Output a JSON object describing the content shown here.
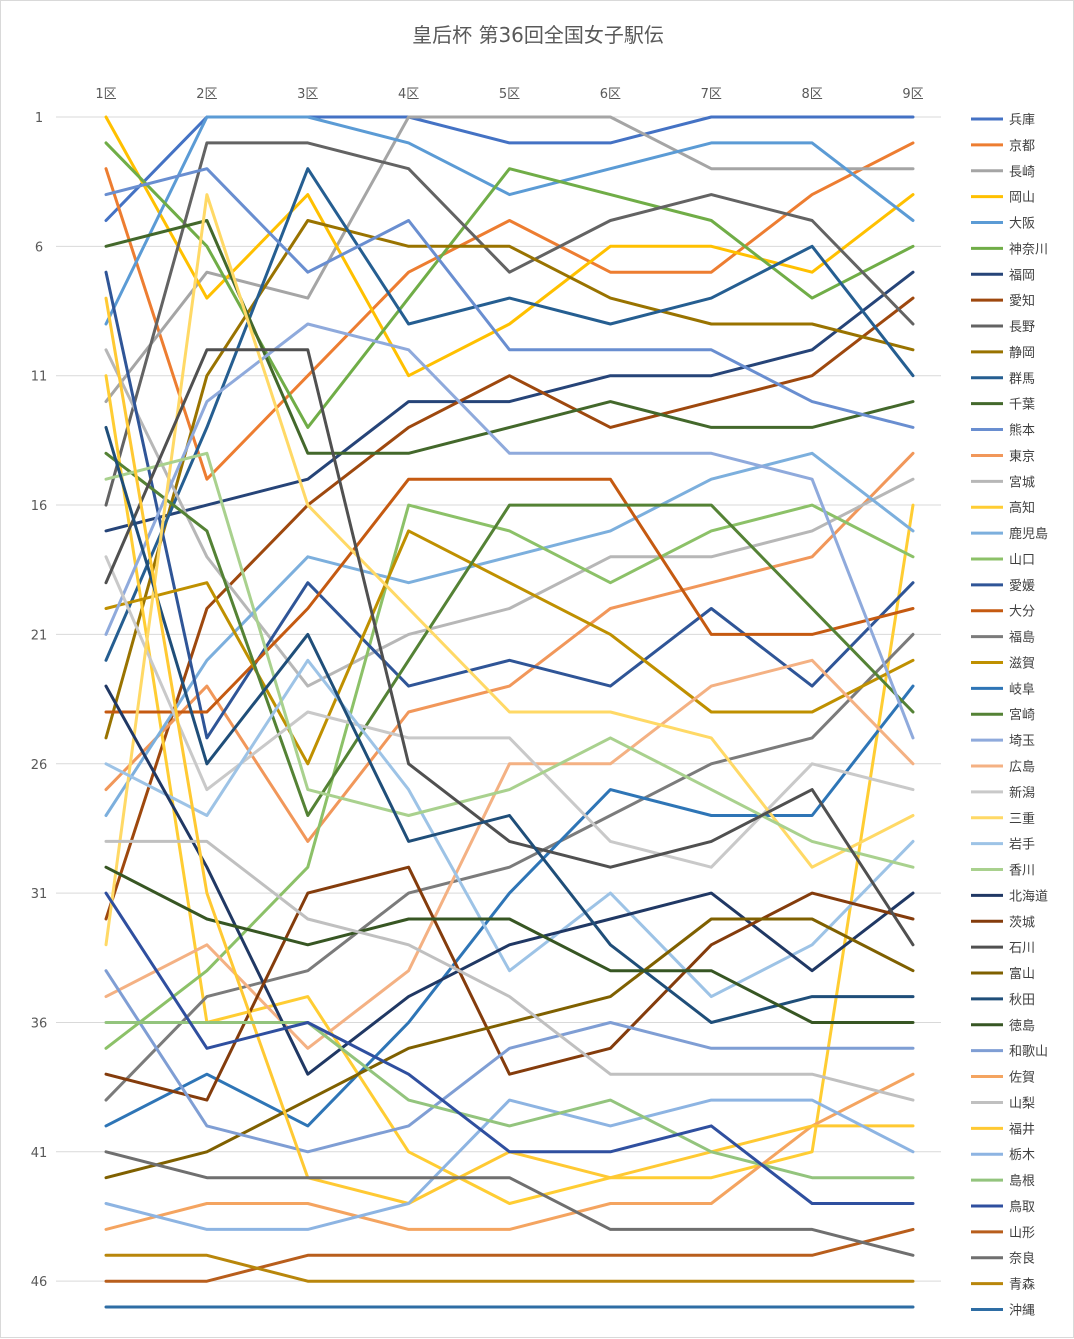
{
  "chart_data": {
    "type": "line",
    "title": "皇后杯 第36回全国女子駅伝",
    "xlabel": "",
    "ylabel": "",
    "x": [
      "1区",
      "2区",
      "3区",
      "4区",
      "5区",
      "6区",
      "7区",
      "8区",
      "9区"
    ],
    "y_reversed": true,
    "ylim": [
      1,
      47
    ],
    "y_ticks": [
      1,
      6,
      11,
      16,
      21,
      26,
      31,
      36,
      41,
      46
    ],
    "grid": "horizontal",
    "legend_position": "right",
    "series": [
      {
        "name": "兵庫",
        "color": "#4472C4",
        "values": [
          5,
          1,
          1,
          1,
          2,
          2,
          1,
          1,
          1
        ]
      },
      {
        "name": "京都",
        "color": "#ED7D31",
        "values": [
          3,
          15,
          11,
          7,
          5,
          7,
          7,
          4,
          2
        ]
      },
      {
        "name": "長崎",
        "color": "#A5A5A5",
        "values": [
          12,
          7,
          8,
          1,
          1,
          1,
          3,
          3,
          3
        ]
      },
      {
        "name": "岡山",
        "color": "#FFC000",
        "values": [
          1,
          8,
          4,
          11,
          9,
          6,
          6,
          7,
          4
        ]
      },
      {
        "name": "大阪",
        "color": "#5B9BD5",
        "values": [
          9,
          1,
          1,
          2,
          4,
          3,
          2,
          2,
          5
        ]
      },
      {
        "name": "神奈川",
        "color": "#70AD47",
        "values": [
          2,
          6,
          13,
          8,
          3,
          4,
          5,
          8,
          6
        ]
      },
      {
        "name": "福岡",
        "color": "#264478",
        "values": [
          17,
          16,
          15,
          12,
          12,
          11,
          11,
          10,
          7
        ]
      },
      {
        "name": "愛知",
        "color": "#9E480E",
        "values": [
          32,
          20,
          16,
          13,
          11,
          13,
          12,
          11,
          8
        ]
      },
      {
        "name": "長野",
        "color": "#636363",
        "values": [
          16,
          2,
          2,
          3,
          7,
          5,
          4,
          5,
          9
        ]
      },
      {
        "name": "静岡",
        "color": "#997300",
        "values": [
          25,
          11,
          5,
          6,
          6,
          8,
          9,
          9,
          10
        ]
      },
      {
        "name": "群馬",
        "color": "#255E91",
        "values": [
          22,
          13,
          3,
          9,
          8,
          9,
          8,
          6,
          11
        ]
      },
      {
        "name": "千葉",
        "color": "#43682B",
        "values": [
          6,
          5,
          14,
          14,
          13,
          12,
          13,
          13,
          12
        ]
      },
      {
        "name": "熊本",
        "color": "#698ED0",
        "values": [
          4,
          3,
          7,
          5,
          10,
          10,
          10,
          12,
          13
        ]
      },
      {
        "name": "東京",
        "color": "#F1975A",
        "values": [
          27,
          23,
          29,
          24,
          23,
          20,
          19,
          18,
          14
        ]
      },
      {
        "name": "宮城",
        "color": "#B7B7B7",
        "values": [
          10,
          18,
          23,
          21,
          20,
          18,
          18,
          17,
          15
        ]
      },
      {
        "name": "高知",
        "color": "#FFCD33",
        "values": [
          11,
          36,
          35,
          41,
          43,
          42,
          42,
          41,
          16
        ]
      },
      {
        "name": "鹿児島",
        "color": "#7CAFDD",
        "values": [
          28,
          22,
          18,
          19,
          18,
          17,
          15,
          14,
          17
        ]
      },
      {
        "name": "山口",
        "color": "#8CC168",
        "values": [
          37,
          34,
          30,
          16,
          17,
          19,
          17,
          16,
          18
        ]
      },
      {
        "name": "愛媛",
        "color": "#2F5597",
        "values": [
          7,
          25,
          19,
          23,
          22,
          23,
          20,
          23,
          19
        ]
      },
      {
        "name": "大分",
        "color": "#C55A11",
        "values": [
          24,
          24,
          20,
          15,
          15,
          15,
          21,
          21,
          20
        ]
      },
      {
        "name": "福島",
        "color": "#7B7B7B",
        "values": [
          39,
          35,
          34,
          31,
          30,
          28,
          26,
          25,
          21
        ]
      },
      {
        "name": "滋賀",
        "color": "#BF9000",
        "values": [
          20,
          19,
          26,
          17,
          19,
          21,
          24,
          24,
          22
        ]
      },
      {
        "name": "岐阜",
        "color": "#2E75B6",
        "values": [
          40,
          38,
          40,
          36,
          31,
          27,
          28,
          28,
          23
        ]
      },
      {
        "name": "宮崎",
        "color": "#548235",
        "values": [
          14,
          17,
          28,
          22,
          16,
          16,
          16,
          20,
          24
        ]
      },
      {
        "name": "埼玉",
        "color": "#8FAADC",
        "values": [
          21,
          12,
          9,
          10,
          14,
          14,
          14,
          15,
          25
        ]
      },
      {
        "name": "広島",
        "color": "#F4B183",
        "values": [
          35,
          33,
          37,
          34,
          26,
          26,
          23,
          22,
          26
        ]
      },
      {
        "name": "新潟",
        "color": "#C9C9C9",
        "values": [
          18,
          27,
          24,
          25,
          25,
          29,
          30,
          26,
          27
        ]
      },
      {
        "name": "三重",
        "color": "#FFD966",
        "values": [
          33,
          4,
          16,
          20,
          24,
          24,
          25,
          30,
          28
        ]
      },
      {
        "name": "岩手",
        "color": "#9DC3E6",
        "values": [
          26,
          28,
          22,
          27,
          34,
          31,
          35,
          33,
          29
        ]
      },
      {
        "name": "香川",
        "color": "#A9D18E",
        "values": [
          15,
          14,
          27,
          28,
          27,
          25,
          27,
          29,
          30
        ]
      },
      {
        "name": "北海道",
        "color": "#203864",
        "values": [
          23,
          30,
          38,
          35,
          33,
          32,
          31,
          34,
          31
        ]
      },
      {
        "name": "茨城",
        "color": "#843C0C",
        "values": [
          38,
          39,
          31,
          30,
          38,
          37,
          33,
          31,
          32
        ]
      },
      {
        "name": "石川",
        "color": "#505050",
        "values": [
          19,
          10,
          10,
          26,
          29,
          30,
          29,
          27,
          33
        ]
      },
      {
        "name": "富山",
        "color": "#7F6000",
        "values": [
          42,
          41,
          39,
          37,
          36,
          35,
          32,
          32,
          34
        ]
      },
      {
        "name": "秋田",
        "color": "#1F4E79",
        "values": [
          13,
          26,
          21,
          29,
          28,
          33,
          36,
          35,
          35
        ]
      },
      {
        "name": "徳島",
        "color": "#375623",
        "values": [
          30,
          32,
          33,
          32,
          32,
          34,
          34,
          36,
          36
        ]
      },
      {
        "name": "和歌山",
        "color": "#7F9ED4",
        "values": [
          34,
          40,
          41,
          40,
          37,
          36,
          37,
          37,
          37
        ]
      },
      {
        "name": "佐賀",
        "color": "#F4A460",
        "values": [
          44,
          43,
          43,
          44,
          44,
          43,
          43,
          40,
          38
        ]
      },
      {
        "name": "山梨",
        "color": "#C0C0C0",
        "values": [
          29,
          29,
          32,
          33,
          35,
          38,
          38,
          38,
          39
        ]
      },
      {
        "name": "福井",
        "color": "#FFC933",
        "values": [
          8,
          31,
          42,
          43,
          41,
          42,
          41,
          40,
          40
        ]
      },
      {
        "name": "栃木",
        "color": "#8DB4E2",
        "values": [
          43,
          44,
          44,
          43,
          39,
          40,
          39,
          39,
          41
        ]
      },
      {
        "name": "島根",
        "color": "#93C47D",
        "values": [
          36,
          36,
          36,
          39,
          40,
          39,
          41,
          42,
          42
        ]
      },
      {
        "name": "鳥取",
        "color": "#2F4F9F",
        "values": [
          31,
          37,
          36,
          38,
          41,
          41,
          40,
          43,
          43
        ]
      },
      {
        "name": "山形",
        "color": "#B85E1C",
        "values": [
          46,
          46,
          45,
          45,
          45,
          45,
          45,
          45,
          44
        ]
      },
      {
        "name": "奈良",
        "color": "#6F6F6F",
        "values": [
          41,
          42,
          42,
          42,
          42,
          44,
          44,
          44,
          45
        ]
      },
      {
        "name": "青森",
        "color": "#B8860B",
        "values": [
          45,
          45,
          46,
          46,
          46,
          46,
          46,
          46,
          46
        ]
      },
      {
        "name": "沖縄",
        "color": "#2E6DA4",
        "values": [
          47,
          47,
          47,
          47,
          47,
          47,
          47,
          47,
          47
        ]
      }
    ]
  }
}
